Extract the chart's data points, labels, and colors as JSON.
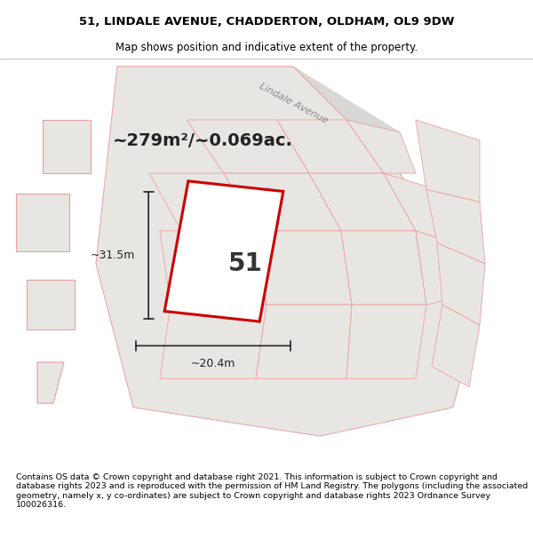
{
  "title_line1": "51, LINDALE AVENUE, CHADDERTON, OLDHAM, OL9 9DW",
  "title_line2": "Map shows position and indicative extent of the property.",
  "area_text": "~279m²/~0.069ac.",
  "label_51": "51",
  "dim_width": "~20.4m",
  "dim_height": "~31.5m",
  "street_label": "Lindale Avenue",
  "footer_text": "Contains OS data © Crown copyright and database right 2021. This information is subject to Crown copyright and database rights 2023 and is reproduced with the permission of HM Land Registry. The polygons (including the associated geometry, namely x, y co-ordinates) are subject to Crown copyright and database rights 2023 Ordnance Survey 100026316.",
  "bg_color": "#f0eeeb",
  "map_bg": "#ededea",
  "road_color": "#d8d8d5",
  "plot_outline_color": "#cc0000",
  "neighbor_outline_color": "#e8a0a0",
  "neighbor_fill_color": "#e8e6e3",
  "white_fill": "#ffffff",
  "title_bg": "#ffffff",
  "footer_bg": "#ffffff",
  "dim_line_color": "#222222"
}
